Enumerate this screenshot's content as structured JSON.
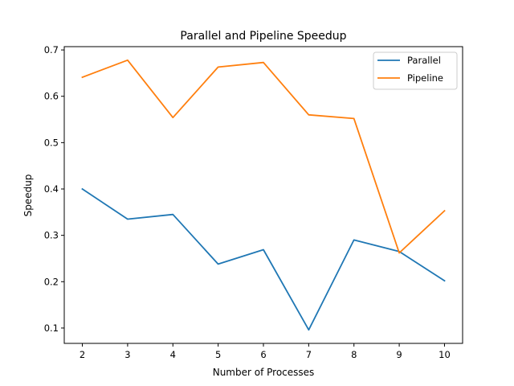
{
  "chart_data": {
    "type": "line",
    "title": "Parallel and Pipeline Speedup",
    "xlabel": "Number of Processes",
    "ylabel": "Speedup",
    "x": [
      2,
      3,
      4,
      5,
      6,
      7,
      8,
      9,
      10
    ],
    "series": [
      {
        "name": "Parallel",
        "color": "#1f77b4",
        "values": [
          0.4,
          0.335,
          0.345,
          0.238,
          0.269,
          0.096,
          0.29,
          0.265,
          0.202
        ]
      },
      {
        "name": "Pipeline",
        "color": "#ff7f0e",
        "values": [
          0.641,
          0.678,
          0.554,
          0.663,
          0.673,
          0.56,
          0.552,
          0.262,
          0.353
        ]
      }
    ],
    "xticks": [
      "2",
      "3",
      "4",
      "5",
      "6",
      "7",
      "8",
      "9",
      "10"
    ],
    "yticks": [
      "0.1",
      "0.2",
      "0.3",
      "0.4",
      "0.5",
      "0.6",
      "0.7"
    ],
    "xlim": [
      1.6,
      10.4
    ],
    "ylim": [
      0.0669,
      0.7071
    ],
    "grid": false,
    "legend_position": "top-right"
  }
}
